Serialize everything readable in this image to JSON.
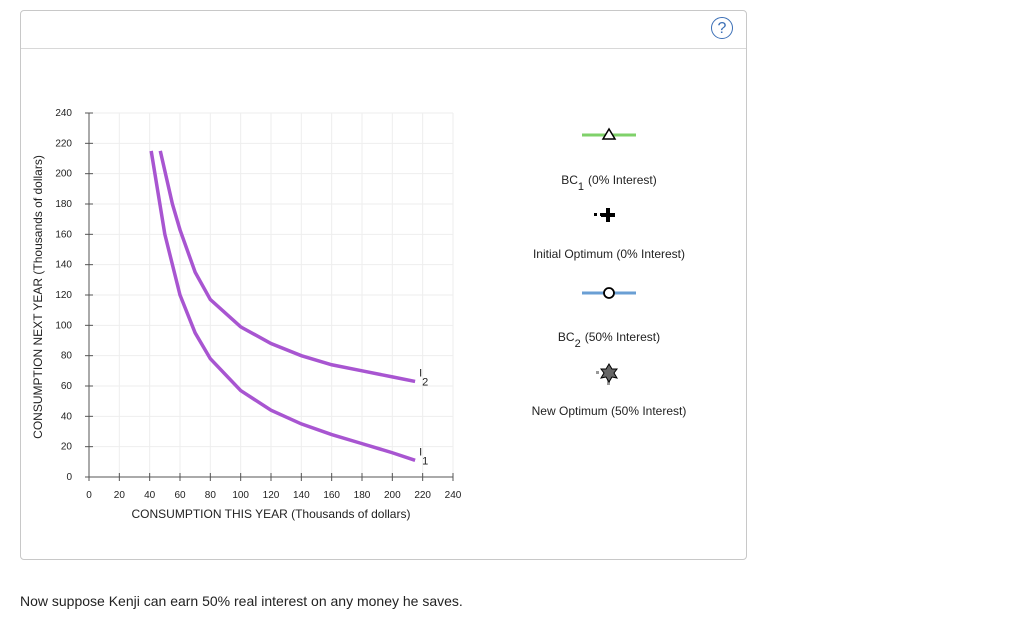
{
  "chart_data": {
    "type": "line",
    "xlabel": "CONSUMPTION THIS YEAR (Thousands of dollars)",
    "ylabel": "CONSUMPTION NEXT YEAR (Thousands of dollars)",
    "xlim": [
      0,
      240
    ],
    "ylim": [
      0,
      240
    ],
    "xticks": [
      0,
      20,
      40,
      60,
      80,
      100,
      120,
      140,
      160,
      180,
      200,
      220,
      240
    ],
    "yticks": [
      0,
      20,
      40,
      60,
      80,
      100,
      120,
      140,
      160,
      180,
      200,
      220,
      240
    ],
    "grid": true,
    "series": [
      {
        "name": "I",
        "subscript": "1",
        "color": "#a855d1",
        "x": [
          41,
          50,
          60,
          70,
          80,
          100,
          120,
          140,
          160,
          180,
          200,
          215
        ],
        "values": [
          215,
          160,
          120,
          95,
          78,
          57,
          44,
          35,
          28,
          22,
          16,
          11
        ]
      },
      {
        "name": "I",
        "subscript": "2",
        "color": "#a855d1",
        "x": [
          47,
          55,
          60,
          70,
          80,
          100,
          120,
          140,
          160,
          180,
          200,
          215
        ],
        "values": [
          215,
          180,
          163,
          135,
          117,
          99,
          88,
          80,
          74,
          70,
          66,
          63
        ]
      }
    ]
  },
  "palette": [
    {
      "text": "BC",
      "subscript": "1",
      "rest": "(0% Interest)"
    },
    {
      "text": "Initial Optimum (0% Interest)"
    },
    {
      "text": "BC",
      "subscript": "2",
      "rest": "(50% Interest)"
    },
    {
      "text": "New Optimum (50% Interest)"
    }
  ],
  "help_icon": "?",
  "prompt": "Now suppose Kenji can earn 50% real interest on any money he saves."
}
